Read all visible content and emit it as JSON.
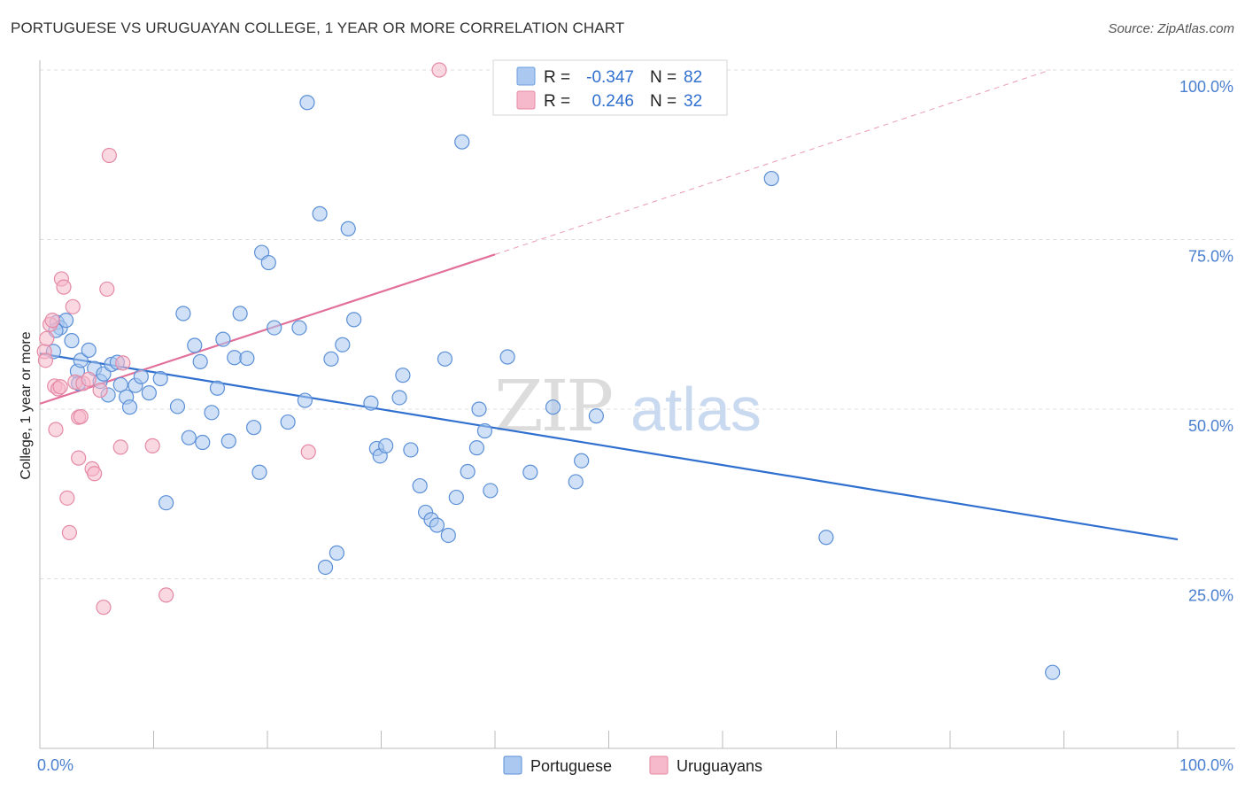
{
  "title": "PORTUGUESE VS URUGUAYAN COLLEGE, 1 YEAR OR MORE CORRELATION CHART",
  "source": "Source: ZipAtlas.com",
  "watermark": {
    "zip": "ZIP",
    "atlas": "atlas"
  },
  "legend": {
    "rows": [
      {
        "r_label": "R = ",
        "r_value": "-0.347",
        "n_label": "N = ",
        "n_value": "82",
        "color": "#aac8f0",
        "stroke": "#6e9ee0"
      },
      {
        "r_label": "R = ",
        "r_value": "0.246",
        "n_label": "N = ",
        "n_value": "32",
        "color": "#f6b8cb",
        "stroke": "#e58aa6"
      }
    ]
  },
  "chart_data": {
    "type": "scatter",
    "title": "PORTUGUESE VS URUGUAYAN COLLEGE, 1 YEAR OR MORE CORRELATION CHART",
    "xlabel": "",
    "ylabel": "College, 1 year or more",
    "xlim": [
      0,
      100
    ],
    "ylim": [
      0,
      100
    ],
    "x_tick_labels": [
      "0.0%",
      "100.0%"
    ],
    "y_tick_labels": [
      {
        "value": 25,
        "label": "25.0%"
      },
      {
        "value": 50,
        "label": "50.0%"
      },
      {
        "value": 75,
        "label": "75.0%"
      },
      {
        "value": 100,
        "label": "100.0%"
      }
    ],
    "series": [
      {
        "name": "Portuguese",
        "color": "#aac8f0",
        "stroke": "#5b8fd6",
        "trend": {
          "x": [
            0,
            100
          ],
          "y": [
            58.2,
            30.8
          ],
          "color": "#2f6fcf",
          "dashed_extension": false
        },
        "points": [
          [
            1.2,
            58.5
          ],
          [
            1.5,
            62.8
          ],
          [
            1.8,
            62.0
          ],
          [
            2.3,
            63.1
          ],
          [
            2.8,
            60.1
          ],
          [
            3.3,
            55.6
          ],
          [
            3.4,
            53.8
          ],
          [
            3.6,
            57.2
          ],
          [
            4.3,
            58.7
          ],
          [
            4.8,
            56.0
          ],
          [
            5.3,
            54.1
          ],
          [
            5.6,
            55.2
          ],
          [
            6.0,
            52.1
          ],
          [
            6.3,
            56.6
          ],
          [
            6.8,
            56.9
          ],
          [
            7.1,
            53.6
          ],
          [
            7.6,
            51.8
          ],
          [
            7.9,
            50.3
          ],
          [
            8.4,
            53.5
          ],
          [
            8.9,
            54.8
          ],
          [
            9.6,
            52.4
          ],
          [
            10.6,
            54.5
          ],
          [
            11.1,
            36.2
          ],
          [
            12.1,
            50.4
          ],
          [
            12.6,
            64.1
          ],
          [
            13.1,
            45.8
          ],
          [
            13.6,
            59.4
          ],
          [
            14.1,
            57.0
          ],
          [
            14.3,
            45.1
          ],
          [
            15.1,
            49.5
          ],
          [
            15.6,
            53.1
          ],
          [
            16.1,
            60.3
          ],
          [
            16.6,
            45.3
          ],
          [
            17.1,
            57.6
          ],
          [
            17.6,
            64.1
          ],
          [
            18.2,
            57.5
          ],
          [
            18.8,
            47.3
          ],
          [
            19.3,
            40.7
          ],
          [
            19.5,
            73.1
          ],
          [
            20.1,
            71.6
          ],
          [
            20.6,
            62.0
          ],
          [
            21.8,
            48.1
          ],
          [
            22.8,
            62.0
          ],
          [
            23.3,
            51.3
          ],
          [
            23.5,
            95.2
          ],
          [
            24.6,
            78.8
          ],
          [
            25.6,
            57.4
          ],
          [
            26.1,
            28.8
          ],
          [
            25.1,
            26.7
          ],
          [
            26.6,
            59.5
          ],
          [
            27.1,
            76.6
          ],
          [
            27.6,
            63.2
          ],
          [
            29.1,
            50.9
          ],
          [
            29.6,
            44.2
          ],
          [
            29.9,
            43.1
          ],
          [
            30.4,
            44.6
          ],
          [
            31.6,
            51.7
          ],
          [
            31.9,
            55.0
          ],
          [
            32.6,
            44.0
          ],
          [
            33.4,
            38.7
          ],
          [
            33.9,
            34.8
          ],
          [
            34.4,
            33.7
          ],
          [
            34.9,
            32.9
          ],
          [
            35.6,
            57.4
          ],
          [
            35.9,
            31.4
          ],
          [
            36.6,
            37.0
          ],
          [
            37.1,
            89.4
          ],
          [
            37.6,
            40.8
          ],
          [
            38.4,
            44.3
          ],
          [
            38.6,
            50.0
          ],
          [
            39.1,
            46.8
          ],
          [
            39.6,
            38.0
          ],
          [
            41.1,
            57.7
          ],
          [
            43.1,
            40.7
          ],
          [
            45.1,
            50.3
          ],
          [
            47.1,
            39.3
          ],
          [
            47.6,
            42.4
          ],
          [
            48.9,
            49.0
          ],
          [
            64.3,
            84.0
          ],
          [
            69.1,
            31.1
          ],
          [
            89.0,
            11.2
          ],
          [
            1.4,
            61.6
          ]
        ]
      },
      {
        "name": "Uruguayans",
        "color": "#f6b8cb",
        "stroke": "#e58aa6",
        "trend": {
          "x": [
            0,
            40
          ],
          "y": [
            50.8,
            72.8
          ],
          "color": "#e2709a",
          "dashed_extension": true,
          "extension_to": [
            88.8,
            100
          ]
        },
        "points": [
          [
            0.4,
            58.5
          ],
          [
            0.6,
            60.4
          ],
          [
            0.9,
            62.5
          ],
          [
            1.1,
            63.1
          ],
          [
            1.3,
            53.4
          ],
          [
            1.4,
            47.0
          ],
          [
            1.6,
            53.0
          ],
          [
            1.8,
            53.3
          ],
          [
            1.9,
            69.2
          ],
          [
            2.1,
            68.0
          ],
          [
            2.4,
            36.9
          ],
          [
            2.6,
            31.8
          ],
          [
            2.9,
            65.1
          ],
          [
            3.1,
            54.0
          ],
          [
            3.4,
            42.8
          ],
          [
            3.4,
            48.8
          ],
          [
            3.6,
            48.9
          ],
          [
            3.8,
            53.8
          ],
          [
            4.3,
            54.4
          ],
          [
            4.6,
            41.2
          ],
          [
            4.8,
            40.5
          ],
          [
            5.3,
            52.8
          ],
          [
            5.6,
            20.8
          ],
          [
            5.9,
            67.7
          ],
          [
            6.1,
            87.4
          ],
          [
            7.1,
            44.4
          ],
          [
            7.3,
            56.8
          ],
          [
            9.9,
            44.6
          ],
          [
            11.1,
            22.6
          ],
          [
            23.6,
            43.7
          ],
          [
            35.1,
            100.0
          ],
          [
            0.5,
            57.2
          ]
        ]
      }
    ]
  },
  "bottom_legend": [
    {
      "label": "Portuguese",
      "color": "#aac8f0",
      "stroke": "#5b8fd6"
    },
    {
      "label": "Uruguayans",
      "color": "#f6b8cb",
      "stroke": "#e58aa6"
    }
  ]
}
